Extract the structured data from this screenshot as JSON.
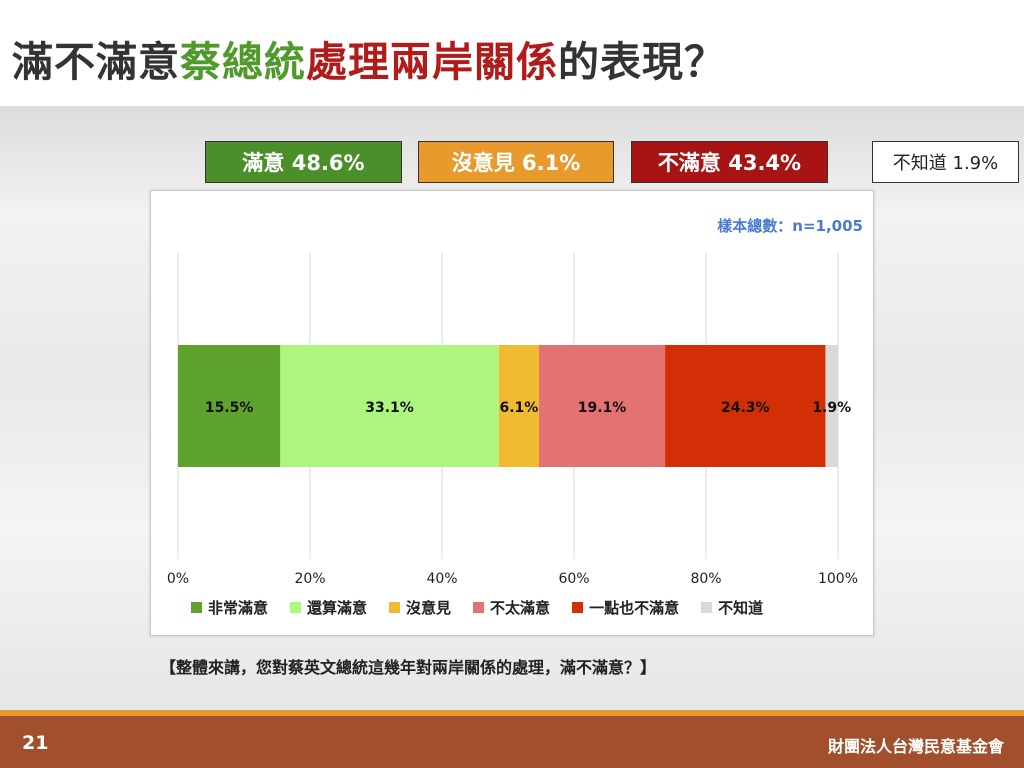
{
  "title": {
    "part1": "滿不滿意",
    "part2": "蔡總統",
    "part3": "處理兩岸關係",
    "part4": "的表現？"
  },
  "summary": {
    "satisfied": "滿意 48.6%",
    "neutral": "沒意見 6.1%",
    "dissatisfied": "不滿意 43.4%",
    "dont_know": "不知道 1.9%"
  },
  "sample_size": "樣本總數：n=1,005",
  "question": "【整體來講，您對蔡英文總統這幾年對兩岸關係的處理，滿不滿意？】",
  "footer": {
    "page": "21",
    "org": "財團法人台灣民意基金會"
  },
  "chart_data": {
    "type": "bar",
    "orientation": "horizontal-stacked",
    "xlim": [
      0,
      100
    ],
    "ticks": [
      "0%",
      "20%",
      "40%",
      "60%",
      "80%",
      "100%"
    ],
    "tick_values": [
      0,
      20,
      40,
      60,
      80,
      100
    ],
    "grid": true,
    "legend_position": "bottom",
    "series": [
      {
        "name": "非常滿意",
        "value": 15.5,
        "label": "15.5%",
        "color": "#5ea32e"
      },
      {
        "name": "還算滿意",
        "value": 33.1,
        "label": "33.1%",
        "color": "#adf77f"
      },
      {
        "name": "沒意見",
        "value": 6.1,
        "label": "6.1%",
        "color": "#f0bb2f"
      },
      {
        "name": "不太滿意",
        "value": 19.1,
        "label": "19.1%",
        "color": "#e47272"
      },
      {
        "name": "一點也不滿意",
        "value": 24.3,
        "label": "24.3%",
        "color": "#d22f06"
      },
      {
        "name": "不知道",
        "value": 1.9,
        "label": "1.9%",
        "color": "#d9d9d9"
      }
    ]
  }
}
